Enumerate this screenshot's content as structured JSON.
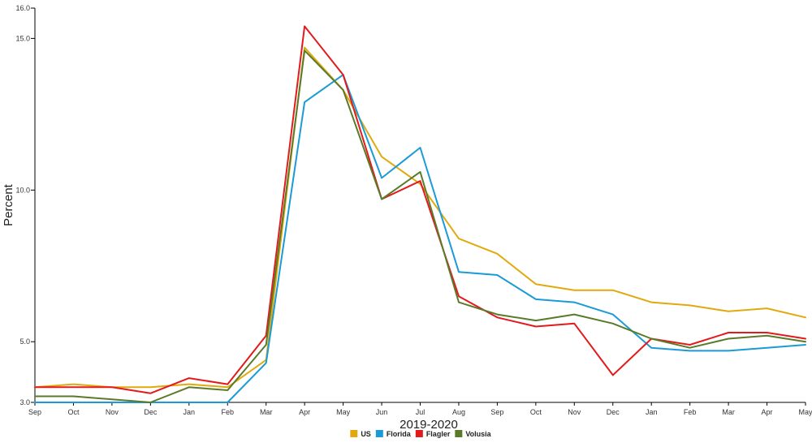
{
  "chart_data": {
    "type": "line",
    "xlabel": "2019-2020",
    "ylabel": "Percent",
    "ylim": [
      3.0,
      16.0
    ],
    "y_ticks": [
      "3.0",
      "5.0",
      "10.0",
      "15.0",
      "16.0"
    ],
    "y_tick_values": [
      3.0,
      5.0,
      10.0,
      15.0,
      16.0
    ],
    "categories": [
      "Sep",
      "Oct",
      "Nov",
      "Dec",
      "Jan",
      "Feb",
      "Mar",
      "Apr",
      "May",
      "Jun",
      "Jul",
      "Aug",
      "Sep",
      "Oct",
      "Nov",
      "Dec",
      "Jan",
      "Feb",
      "Mar",
      "Apr",
      "May"
    ],
    "grid": false,
    "legend_position": "bottom",
    "series": [
      {
        "name": "US",
        "color": "#e0aa0f",
        "values": [
          3.5,
          3.6,
          3.5,
          3.5,
          3.6,
          3.5,
          4.4,
          14.7,
          13.3,
          11.1,
          10.2,
          8.4,
          7.9,
          6.9,
          6.7,
          6.7,
          6.3,
          6.2,
          6.0,
          6.1,
          5.8
        ]
      },
      {
        "name": "Florida",
        "color": "#1a9bd7",
        "values": [
          3.0,
          3.0,
          3.0,
          3.0,
          3.0,
          3.0,
          4.3,
          12.9,
          13.8,
          10.4,
          11.4,
          7.3,
          7.2,
          6.4,
          6.3,
          5.9,
          4.8,
          4.7,
          4.7,
          4.8,
          4.9
        ]
      },
      {
        "name": "Flagler",
        "color": "#e31a1c",
        "values": [
          3.5,
          3.5,
          3.5,
          3.3,
          3.8,
          3.6,
          5.2,
          15.4,
          13.8,
          9.7,
          10.3,
          6.5,
          5.8,
          5.5,
          5.6,
          3.9,
          5.1,
          4.9,
          5.3,
          5.3,
          5.1
        ]
      },
      {
        "name": "Volusia",
        "color": "#5a7a2a",
        "values": [
          3.2,
          3.2,
          3.1,
          3.0,
          3.5,
          3.4,
          4.9,
          14.6,
          13.3,
          9.7,
          10.6,
          6.3,
          5.9,
          5.7,
          5.9,
          5.6,
          5.1,
          4.8,
          5.1,
          5.2,
          5.0
        ]
      }
    ]
  }
}
